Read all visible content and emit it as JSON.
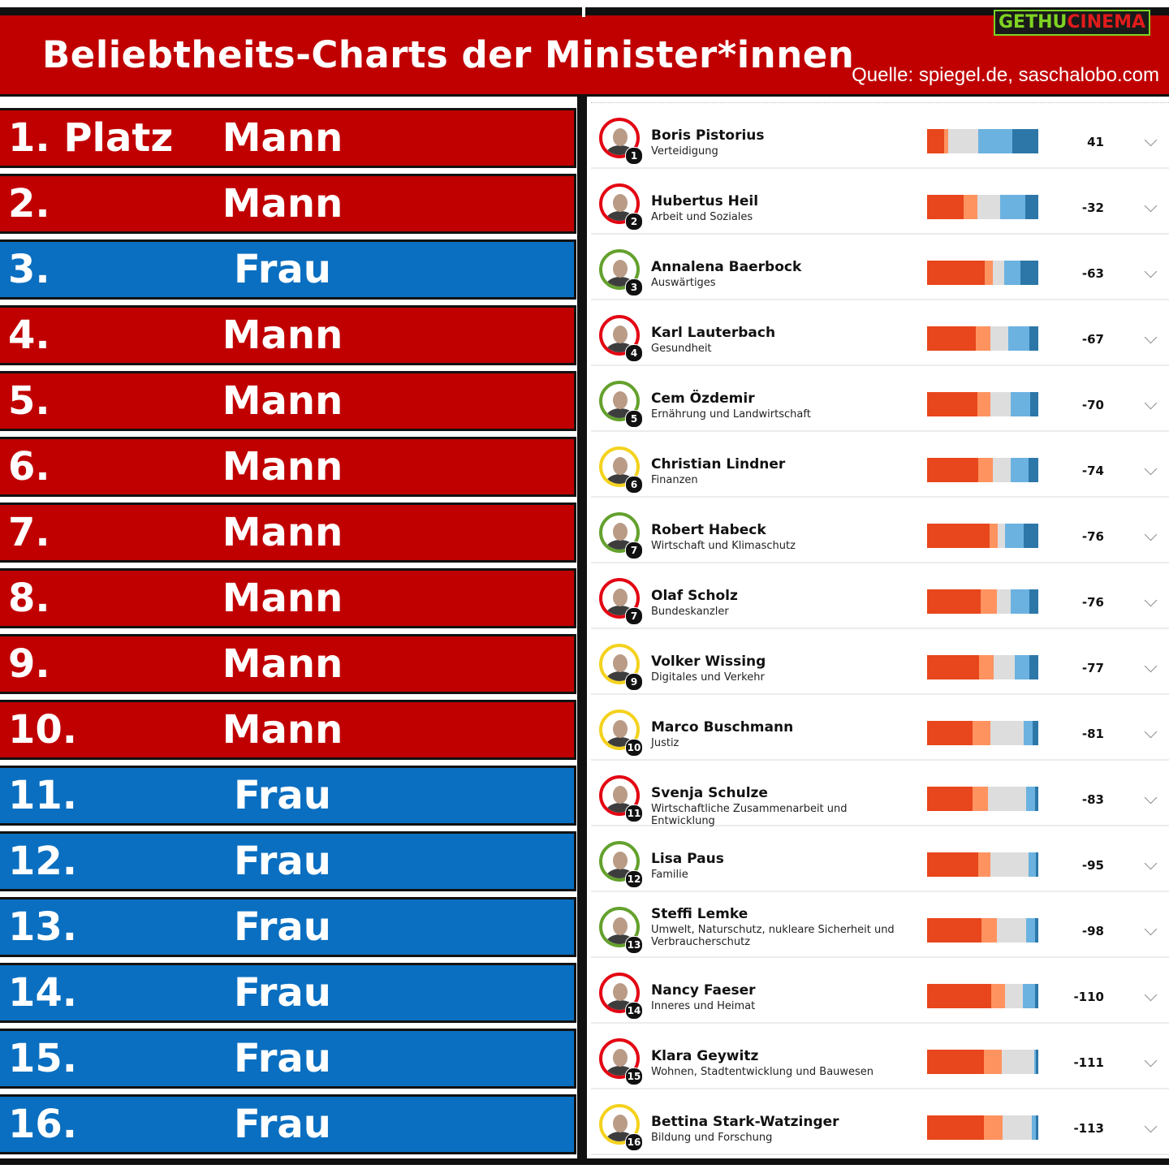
{
  "header": {
    "title": "Beliebtheits-Charts der Minister*innen",
    "source": "Quelle: spiegel.de, saschalobo.com",
    "logo_part1": "GETHU",
    "logo_part2": "CINEMA"
  },
  "colors": {
    "red_bg": "#c00000",
    "blue_bg": "#0a6fc0",
    "very_negative": "#e8461c",
    "negative": "#ff9360",
    "neutral": "#dddddd",
    "positive": "#6bb2e0",
    "very_positive": "#2c77a8",
    "party_spd": "#e30613",
    "party_green": "#64a12d",
    "party_fdp": "#f4d21e"
  },
  "ranking": [
    {
      "rank": "1. Platz",
      "gender": "Mann",
      "color": "red"
    },
    {
      "rank": "2.",
      "gender": "Mann",
      "color": "red"
    },
    {
      "rank": "3.",
      "gender": "Frau",
      "color": "blue"
    },
    {
      "rank": "4.",
      "gender": "Mann",
      "color": "red"
    },
    {
      "rank": "5.",
      "gender": "Mann",
      "color": "red"
    },
    {
      "rank": "6.",
      "gender": "Mann",
      "color": "red"
    },
    {
      "rank": "7.",
      "gender": "Mann",
      "color": "red"
    },
    {
      "rank": "8.",
      "gender": "Mann",
      "color": "red"
    },
    {
      "rank": "9.",
      "gender": "Mann",
      "color": "red"
    },
    {
      "rank": "10.",
      "gender": "Mann",
      "color": "red"
    },
    {
      "rank": "11.",
      "gender": "Frau",
      "color": "blue"
    },
    {
      "rank": "12.",
      "gender": "Frau",
      "color": "blue"
    },
    {
      "rank": "13.",
      "gender": "Frau",
      "color": "blue"
    },
    {
      "rank": "14.",
      "gender": "Frau",
      "color": "blue"
    },
    {
      "rank": "15.",
      "gender": "Frau",
      "color": "blue"
    },
    {
      "rank": "16.",
      "gender": "Frau",
      "color": "blue"
    }
  ],
  "chart_data": {
    "type": "bar",
    "stacked": true,
    "series_order": [
      "very_negative",
      "negative",
      "neutral",
      "positive",
      "very_positive"
    ],
    "ministers": [
      {
        "name": "Boris Pistorius",
        "department": "Verteidigung",
        "badge": "1",
        "party": "spd",
        "score": "41",
        "segments": [
          15,
          4,
          27,
          31,
          23
        ]
      },
      {
        "name": "Hubertus Heil",
        "department": "Arbeit und Soziales",
        "badge": "2",
        "party": "spd",
        "score": "-32",
        "segments": [
          33,
          12,
          21,
          22,
          12
        ]
      },
      {
        "name": "Annalena Baerbock",
        "department": "Auswärtiges",
        "badge": "3",
        "party": "green",
        "score": "-63",
        "segments": [
          52,
          7,
          10,
          15,
          16
        ]
      },
      {
        "name": "Karl Lauterbach",
        "department": "Gesundheit",
        "badge": "4",
        "party": "spd",
        "score": "-67",
        "segments": [
          44,
          13,
          16,
          19,
          8
        ]
      },
      {
        "name": "Cem Özdemir",
        "department": "Ernährung und Landwirtschaft",
        "badge": "5",
        "party": "green",
        "score": "-70",
        "segments": [
          45,
          12,
          18,
          18,
          7
        ]
      },
      {
        "name": "Christian Lindner",
        "department": "Finanzen",
        "badge": "6",
        "party": "fdp",
        "score": "-74",
        "segments": [
          46,
          13,
          16,
          16,
          9
        ]
      },
      {
        "name": "Robert Habeck",
        "department": "Wirtschaft und Klimaschutz",
        "badge": "7",
        "party": "green",
        "score": "-76",
        "segments": [
          55,
          7,
          7,
          16,
          13
        ]
      },
      {
        "name": "Olaf Scholz",
        "department": "Bundeskanzler",
        "badge": "7",
        "party": "spd",
        "score": "-76",
        "segments": [
          48,
          15,
          12,
          17,
          8
        ]
      },
      {
        "name": "Volker Wissing",
        "department": "Digitales und Verkehr",
        "badge": "9",
        "party": "fdp",
        "score": "-77",
        "segments": [
          47,
          13,
          19,
          13,
          8
        ]
      },
      {
        "name": "Marco Buschmann",
        "department": "Justiz",
        "badge": "10",
        "party": "fdp",
        "score": "-81",
        "segments": [
          41,
          16,
          30,
          8,
          5
        ]
      },
      {
        "name": "Svenja Schulze",
        "department": "Wirtschaftliche Zusammenarbeit und Entwicklung",
        "badge": "11",
        "party": "spd",
        "score": "-83",
        "segments": [
          41,
          14,
          34,
          8,
          3
        ]
      },
      {
        "name": "Lisa Paus",
        "department": "Familie",
        "badge": "12",
        "party": "green",
        "score": "-95",
        "segments": [
          46,
          11,
          34,
          7,
          2
        ]
      },
      {
        "name": "Steffi Lemke",
        "department": "Umwelt, Naturschutz, nukleare Sicherheit und Verbraucherschutz",
        "badge": "13",
        "party": "green",
        "score": "-98",
        "segments": [
          49,
          14,
          26,
          8,
          3
        ]
      },
      {
        "name": "Nancy Faeser",
        "department": "Inneres und Heimat",
        "badge": "14",
        "party": "spd",
        "score": "-110",
        "segments": [
          58,
          12,
          16,
          11,
          3
        ]
      },
      {
        "name": "Klara Geywitz",
        "department": "Wohnen, Stadtentwicklung und Bauwesen",
        "badge": "15",
        "party": "spd",
        "score": "-111",
        "segments": [
          51,
          16,
          29,
          2,
          2
        ]
      },
      {
        "name": "Bettina Stark-Watzinger",
        "department": "Bildung und Forschung",
        "badge": "16",
        "party": "fdp",
        "score": "-113",
        "segments": [
          51,
          17,
          26,
          4,
          2
        ]
      }
    ]
  }
}
